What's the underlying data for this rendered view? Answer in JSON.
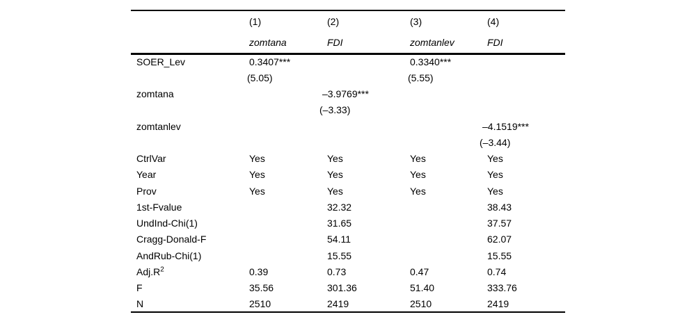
{
  "table": {
    "columns": [
      "",
      "(1)",
      "(2)",
      "(3)",
      "(4)"
    ],
    "column_vars": [
      "",
      "zomtana",
      "FDI",
      "zomtanlev",
      "FDI"
    ],
    "rows": [
      {
        "label": "SOER_Lev",
        "cells": [
          "0.3407***",
          "",
          "0.3340***",
          ""
        ]
      },
      {
        "label": "",
        "cells": [
          "(5.05)",
          "",
          "(5.55)",
          ""
        ]
      },
      {
        "label": "zomtana",
        "cells": [
          "",
          "–3.9769***",
          "",
          ""
        ]
      },
      {
        "label": "",
        "cells": [
          "",
          "(–3.33)",
          "",
          ""
        ]
      },
      {
        "label": "zomtanlev",
        "cells": [
          "",
          "",
          "",
          "–4.1519***"
        ]
      },
      {
        "label": "",
        "cells": [
          "",
          "",
          "",
          "(–3.44)"
        ]
      },
      {
        "label": "CtrlVar",
        "cells": [
          "Yes",
          "Yes",
          "Yes",
          "Yes"
        ]
      },
      {
        "label": "Year",
        "cells": [
          "Yes",
          "Yes",
          "Yes",
          "Yes"
        ]
      },
      {
        "label": "Prov",
        "cells": [
          "Yes",
          "Yes",
          "Yes",
          "Yes"
        ]
      },
      {
        "label": "1st-Fvalue",
        "cells": [
          "",
          "32.32",
          "",
          "38.43"
        ]
      },
      {
        "label": "UndInd-Chi(1)",
        "cells": [
          "",
          "31.65",
          "",
          "37.57"
        ]
      },
      {
        "label": "Cragg-Donald-F",
        "cells": [
          "",
          "54.11",
          "",
          "62.07"
        ]
      },
      {
        "label": "AndRub-Chi(1)",
        "cells": [
          "",
          "15.55",
          "",
          "15.55"
        ]
      },
      {
        "label": "Adj.R^2",
        "cells": [
          "0.39",
          "0.73",
          "0.47",
          "0.74"
        ]
      },
      {
        "label": "F",
        "cells": [
          "35.56",
          "301.36",
          "51.40",
          "333.76"
        ]
      },
      {
        "label": "N",
        "cells": [
          "2510",
          "2419",
          "2510",
          "2419"
        ]
      }
    ],
    "colors": {
      "text": "#000000",
      "background": "#ffffff",
      "rule": "#000000"
    }
  }
}
